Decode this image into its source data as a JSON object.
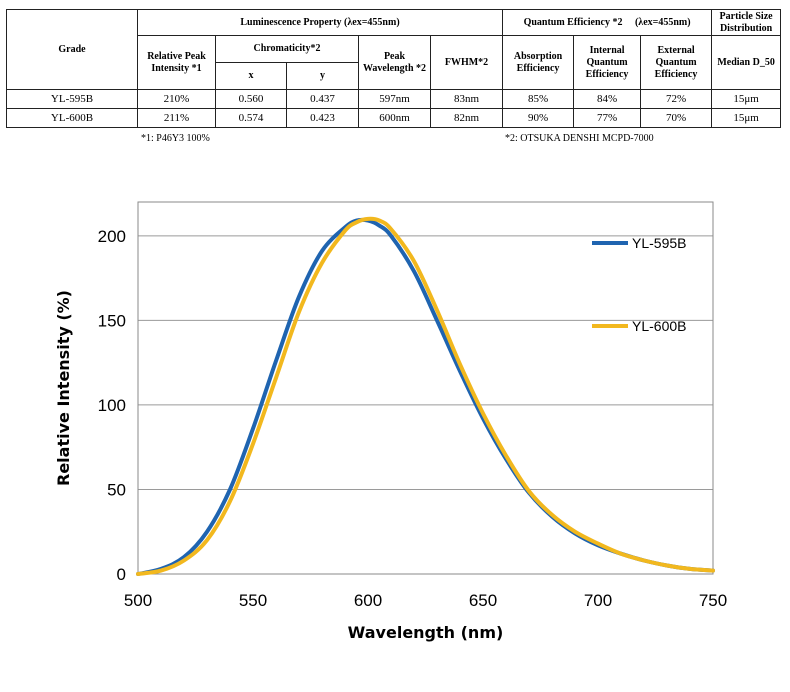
{
  "table": {
    "headers": {
      "grade": "Grade",
      "luminescence": "Luminescence Property (λex=455nm)",
      "quantum": "Quantum Efficiency *2　 (λex=455nm)",
      "particle": "Particle Size Distribution",
      "rel_peak": "Relative Peak Intensity *1",
      "chromaticity": "Chromaticity*2",
      "x": "x",
      "y": "y",
      "peak_wl": "Peak Wavelength *2",
      "fwhm": "FWHM*2",
      "absorption": "Absorption Efficiency",
      "internal": "Internal Quantum Efficiency",
      "external": "External Quantum Efficiency",
      "median": "Median D_50"
    },
    "rows": [
      {
        "grade": "YL-595B",
        "rel_peak": "210%",
        "x": "0.560",
        "y": "0.437",
        "peak": "597nm",
        "fwhm": "83nm",
        "absorption": "85%",
        "internal": "84%",
        "external": "72%",
        "median": "15μm"
      },
      {
        "grade": "YL-600B",
        "rel_peak": "211%",
        "x": "0.574",
        "y": "0.423",
        "peak": "600nm",
        "fwhm": "82nm",
        "absorption": "90%",
        "internal": "77%",
        "external": "70%",
        "median": "15μm"
      }
    ],
    "footnote1": "*1: P46Y3 100%",
    "footnote2": "*2: OTSUKA DENSHI MCPD-7000"
  },
  "chart_data": {
    "type": "line",
    "title": "",
    "xlabel": "Wavelength (nm)",
    "ylabel": "Relative Intensity (%)",
    "xlim": [
      500,
      750
    ],
    "ylim": [
      0,
      220
    ],
    "xticks": [
      500,
      550,
      600,
      650,
      700,
      750
    ],
    "yticks": [
      0,
      50,
      100,
      150,
      200
    ],
    "grid": "horizontal",
    "legend_position": "right",
    "series": [
      {
        "name": "YL-595B",
        "color": "#1f64b0",
        "x": [
          500,
          510,
          520,
          530,
          540,
          550,
          560,
          570,
          580,
          590,
          595,
          600,
          605,
          610,
          620,
          630,
          640,
          650,
          660,
          670,
          680,
          690,
          700,
          710,
          720,
          730,
          740,
          750
        ],
        "y": [
          0,
          3,
          10,
          25,
          50,
          86,
          126,
          164,
          191,
          205,
          209,
          209,
          206,
          200,
          179,
          150,
          120,
          92,
          68,
          48,
          34,
          24,
          17,
          12,
          8,
          5,
          3,
          2
        ]
      },
      {
        "name": "YL-600B",
        "color": "#f2b81e",
        "x": [
          500,
          510,
          520,
          530,
          540,
          550,
          560,
          570,
          580,
          590,
          595,
          600,
          605,
          610,
          620,
          630,
          640,
          650,
          660,
          670,
          680,
          690,
          700,
          710,
          720,
          730,
          740,
          750
        ],
        "y": [
          0,
          2,
          8,
          20,
          43,
          77,
          116,
          155,
          184,
          203,
          208,
          210,
          209,
          204,
          185,
          156,
          124,
          95,
          70,
          49,
          35,
          25,
          18,
          12,
          8,
          5,
          3,
          2
        ]
      }
    ]
  }
}
